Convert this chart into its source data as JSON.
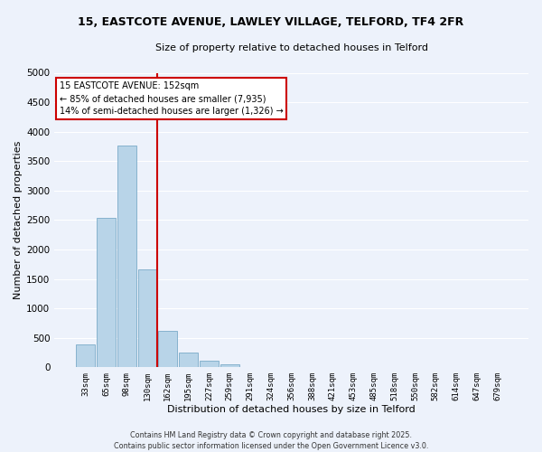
{
  "title": "15, EASTCOTE AVENUE, LAWLEY VILLAGE, TELFORD, TF4 2FR",
  "subtitle": "Size of property relative to detached houses in Telford",
  "xlabel": "Distribution of detached houses by size in Telford",
  "ylabel": "Number of detached properties",
  "bar_labels": [
    "33sqm",
    "65sqm",
    "98sqm",
    "130sqm",
    "162sqm",
    "195sqm",
    "227sqm",
    "259sqm",
    "291sqm",
    "324sqm",
    "356sqm",
    "388sqm",
    "421sqm",
    "453sqm",
    "485sqm",
    "518sqm",
    "550sqm",
    "582sqm",
    "614sqm",
    "647sqm",
    "679sqm"
  ],
  "bar_values": [
    380,
    2540,
    3760,
    1660,
    620,
    250,
    110,
    50,
    0,
    0,
    0,
    0,
    0,
    0,
    0,
    0,
    0,
    0,
    0,
    0,
    0
  ],
  "bar_color": "#b8d4e8",
  "bar_edge_color": "#7aaac8",
  "vline_index": 3.5,
  "vline_color": "#cc0000",
  "ylim": [
    0,
    5000
  ],
  "yticks": [
    0,
    500,
    1000,
    1500,
    2000,
    2500,
    3000,
    3500,
    4000,
    4500,
    5000
  ],
  "annotation_title": "15 EASTCOTE AVENUE: 152sqm",
  "annotation_line1": "← 85% of detached houses are smaller (7,935)",
  "annotation_line2": "14% of semi-detached houses are larger (1,326) →",
  "annotation_box_facecolor": "#ffffff",
  "annotation_box_edgecolor": "#cc0000",
  "footer_line1": "Contains HM Land Registry data © Crown copyright and database right 2025.",
  "footer_line2": "Contains public sector information licensed under the Open Government Licence v3.0.",
  "bg_color": "#edf2fb",
  "grid_color": "#ffffff"
}
